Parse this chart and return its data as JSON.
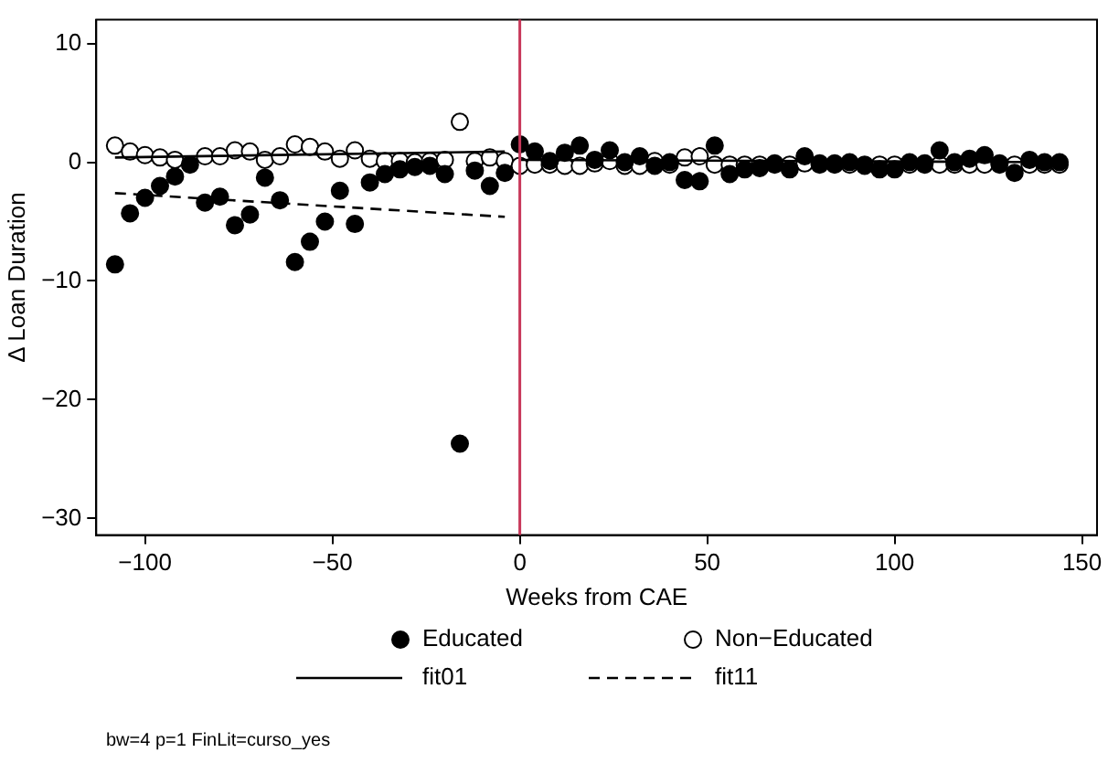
{
  "chart_data": {
    "type": "scatter",
    "xlabel": "Weeks from CAE",
    "ylabel": "Δ Loan Duration",
    "xlim": [
      -113,
      154
    ],
    "xticks": [
      {
        "value": -100,
        "label": "−100"
      },
      {
        "value": -50,
        "label": "−50"
      },
      0,
      50,
      100,
      150
    ],
    "ylim": [
      -31.4,
      12
    ],
    "yticks": [
      10,
      0,
      {
        "value": -10,
        "label": "−10"
      },
      {
        "value": -20,
        "label": "−20"
      },
      {
        "value": -30,
        "label": "−30"
      }
    ],
    "grid": false,
    "legend": "bottom",
    "marker": "circle",
    "ref_lines": [
      {
        "axis": "x",
        "value": 0,
        "color": "#c8385a"
      }
    ],
    "annotations": [
      "bw=4 p=1 FinLit=curso_yes"
    ],
    "series": [
      {
        "name": "Educated",
        "color": "#000000",
        "x": [
          -108,
          -104,
          -100,
          -96,
          -92,
          -88,
          -84,
          -80,
          -76,
          -72,
          -68,
          -64,
          -60,
          -56,
          -52,
          -48,
          -44,
          -40,
          -36,
          -32,
          -28,
          -24,
          -20,
          -16,
          -12,
          -8,
          -4,
          0,
          4,
          8,
          12,
          16,
          20,
          24,
          28,
          32,
          36,
          40,
          44,
          48,
          52,
          56,
          60,
          64,
          68,
          72,
          76,
          80,
          84,
          88,
          92,
          96,
          100,
          104,
          108,
          112,
          116,
          120,
          124,
          128,
          132,
          136,
          140,
          144
        ],
        "values": [
          -8.6,
          -4.3,
          -3.0,
          -2.0,
          -1.2,
          -0.2,
          -3.4,
          -2.9,
          -5.3,
          -4.4,
          -1.3,
          -3.2,
          -8.4,
          -6.7,
          -5.0,
          -2.4,
          -5.2,
          -1.7,
          -1.0,
          -0.6,
          -0.4,
          -0.3,
          -1.0,
          -23.7,
          -0.7,
          -2.0,
          -0.9,
          1.5,
          0.9,
          0.1,
          0.8,
          1.4,
          0.2,
          1.0,
          0,
          0.5,
          -0.3,
          0,
          -1.5,
          -1.6,
          1.4,
          -1.0,
          -0.6,
          -0.5,
          -0.1,
          -0.6,
          0.5,
          -0.1,
          -0.1,
          0,
          -0.3,
          -0.6,
          -0.6,
          0,
          -0.1,
          1.0,
          0,
          0.3,
          0.6,
          -0.1,
          -0.9,
          0.2,
          0,
          0
        ]
      },
      {
        "name": "Non−Educated",
        "color": "#ffffff",
        "x": [
          -108,
          -104,
          -100,
          -96,
          -92,
          -88,
          -84,
          -80,
          -76,
          -72,
          -68,
          -64,
          -60,
          -56,
          -52,
          -48,
          -44,
          -40,
          -36,
          -32,
          -28,
          -24,
          -20,
          -16,
          -12,
          -8,
          -4,
          0,
          4,
          8,
          12,
          16,
          20,
          24,
          28,
          32,
          36,
          40,
          44,
          48,
          52,
          56,
          60,
          64,
          68,
          72,
          76,
          80,
          84,
          88,
          92,
          96,
          100,
          104,
          108,
          112,
          116,
          120,
          124,
          128,
          132,
          136,
          140,
          144
        ],
        "values": [
          1.4,
          0.9,
          0.6,
          0.4,
          0.2,
          null,
          0.5,
          0.5,
          1.0,
          0.9,
          0.2,
          0.5,
          1.5,
          1.3,
          0.9,
          0.3,
          1.0,
          0.3,
          0.1,
          0.1,
          0.0,
          0.1,
          0.2,
          3.4,
          0.1,
          0.4,
          0.1,
          -0.3,
          -0.2,
          -0.2,
          -0.3,
          -0.3,
          -0.1,
          0.1,
          -0.3,
          -0.3,
          0.1,
          -0.2,
          0.4,
          0.5,
          -0.2,
          -0.2,
          -0.2,
          -0.2,
          -0.2,
          -0.2,
          -0.1,
          -0.2,
          -0.2,
          -0.2,
          -0.2,
          -0.2,
          -0.2,
          -0.2,
          -0.2,
          -0.2,
          -0.2,
          -0.2,
          -0.2,
          -0.2,
          -0.2,
          -0.2,
          -0.2,
          -0.2
        ]
      },
      {
        "name": "fit01",
        "type": "line",
        "color": "#000000",
        "marker": "none",
        "line_style": "solid",
        "x": [
          -108,
          -4,
          -2,
          0,
          144
        ],
        "values": [
          0.4,
          0.9,
          null,
          0.2,
          0.0
        ]
      },
      {
        "name": "fit11",
        "type": "line",
        "color": "#000000",
        "marker": "none",
        "line_style": "dashed",
        "x": [
          -108,
          -4
        ],
        "values": [
          -2.6,
          -4.6
        ]
      }
    ]
  }
}
